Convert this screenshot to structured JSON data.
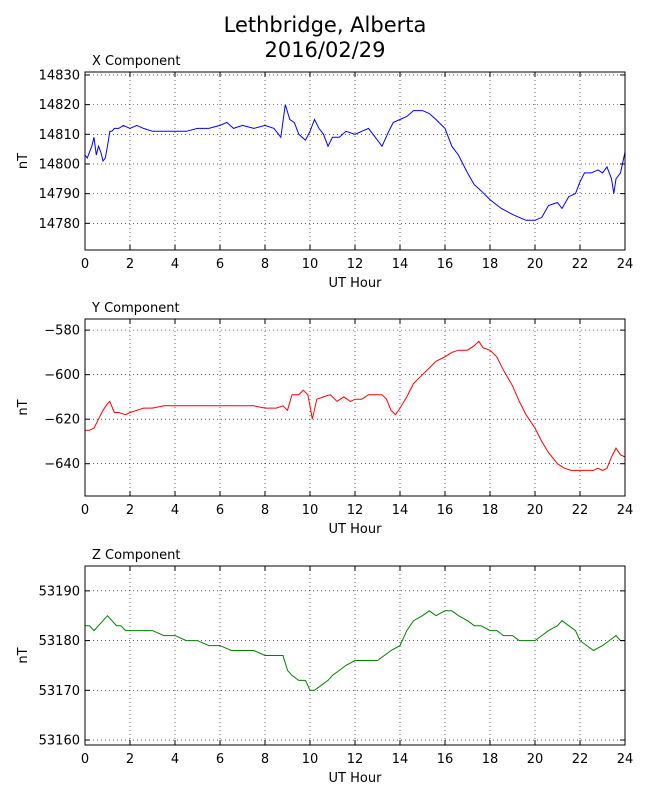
{
  "figure": {
    "title_line1": "Lethbridge, Alberta",
    "title_line2": "2016/02/29"
  },
  "chart_data": [
    {
      "type": "line",
      "title": "X Component",
      "xlabel": "UT Hour",
      "ylabel": "nT",
      "xlim": [
        0,
        24
      ],
      "ylim": [
        14771,
        14831
      ],
      "xticks": [
        0,
        2,
        4,
        6,
        8,
        10,
        12,
        14,
        16,
        18,
        20,
        22,
        24
      ],
      "yticks": [
        14780,
        14790,
        14800,
        14810,
        14820,
        14830
      ],
      "grid": true,
      "color": "#0000ff",
      "series": [
        {
          "x": [
            0,
            0.1,
            0.2,
            0.3,
            0.4,
            0.5,
            0.6,
            0.7,
            0.8,
            0.9,
            1.0,
            1.1,
            1.2,
            1.3,
            1.5,
            1.7,
            2.0,
            2.3,
            2.6,
            3.0,
            3.5,
            4.0,
            4.5,
            5.0,
            5.5,
            6.0,
            6.3,
            6.6,
            7.0,
            7.5,
            8.0,
            8.4,
            8.7,
            8.9,
            9.1,
            9.3,
            9.5,
            9.8,
            10.0,
            10.2,
            10.4,
            10.6,
            10.8,
            11.0,
            11.3,
            11.6,
            12.0,
            12.3,
            12.6,
            12.9,
            13.2,
            13.5,
            13.7,
            14.0,
            14.3,
            14.6,
            15.0,
            15.3,
            15.6,
            16.0,
            16.3,
            16.6,
            17.0,
            17.3,
            17.6,
            18.0,
            18.5,
            19.0,
            19.3,
            19.6,
            20.0,
            20.3,
            20.6,
            21.0,
            21.2,
            21.5,
            21.8,
            22.0,
            22.2,
            22.5,
            22.8,
            23.0,
            23.2,
            23.4,
            23.5,
            23.6,
            23.8,
            24.0
          ],
          "y": [
            14803,
            14802,
            14804,
            14806,
            14809,
            14803,
            14806,
            14804,
            14801,
            14802,
            14806,
            14811,
            14811,
            14812,
            14812,
            14813,
            14812,
            14813,
            14812,
            14811,
            14811,
            14811,
            14811,
            14812,
            14812,
            14813,
            14814,
            14812,
            14813,
            14812,
            14813,
            14812,
            14809,
            14820,
            14815,
            14814,
            14810,
            14808,
            14811,
            14815,
            14812,
            14810,
            14806,
            14809,
            14809,
            14811,
            14810,
            14811,
            14812,
            14809,
            14806,
            14811,
            14814,
            14815,
            14816,
            14818,
            14818,
            14817,
            14815,
            14812,
            14806,
            14803,
            14797,
            14793,
            14791,
            14788,
            14785,
            14783,
            14782,
            14781,
            14781,
            14782,
            14786,
            14787,
            14785,
            14789,
            14790,
            14794,
            14797,
            14797,
            14798,
            14797,
            14799,
            14795,
            14790,
            14795,
            14797,
            14804
          ]
        }
      ]
    },
    {
      "type": "line",
      "title": "Y Component",
      "xlabel": "UT Hour",
      "ylabel": "nT",
      "xlim": [
        0,
        24
      ],
      "ylim": [
        -654.5,
        -575
      ],
      "xticks": [
        0,
        2,
        4,
        6,
        8,
        10,
        12,
        14,
        16,
        18,
        20,
        22,
        24
      ],
      "yticks": [
        -580,
        -600,
        -620,
        -640
      ],
      "grid": true,
      "color": "#ff0000",
      "series": [
        {
          "x": [
            0,
            0.2,
            0.4,
            0.6,
            0.8,
            1.0,
            1.1,
            1.3,
            1.5,
            1.8,
            2.0,
            2.3,
            2.6,
            3.0,
            3.5,
            4.0,
            4.5,
            5.0,
            5.5,
            6.0,
            6.5,
            7.0,
            7.5,
            8.0,
            8.5,
            8.8,
            9.0,
            9.2,
            9.5,
            9.7,
            9.9,
            10.0,
            10.1,
            10.3,
            10.6,
            10.9,
            11.2,
            11.5,
            11.8,
            12.0,
            12.3,
            12.6,
            12.9,
            13.2,
            13.4,
            13.6,
            13.8,
            14.0,
            14.3,
            14.6,
            15.0,
            15.3,
            15.6,
            16.0,
            16.3,
            16.6,
            17.0,
            17.3,
            17.5,
            17.7,
            18.0,
            18.3,
            18.6,
            19.0,
            19.3,
            19.6,
            20.0,
            20.3,
            20.6,
            21.0,
            21.3,
            21.6,
            22.0,
            22.3,
            22.6,
            22.8,
            23.0,
            23.2,
            23.4,
            23.6,
            23.8,
            24.0
          ],
          "y": [
            -625,
            -625,
            -624,
            -620,
            -616,
            -613,
            -612,
            -617,
            -617,
            -618,
            -617,
            -616,
            -615,
            -615,
            -614,
            -614,
            -614,
            -614,
            -614,
            -614,
            -614,
            -614,
            -614,
            -615,
            -615,
            -614,
            -616,
            -609,
            -609,
            -607,
            -609,
            -614,
            -620,
            -611,
            -610,
            -609,
            -612,
            -610,
            -612,
            -611,
            -611,
            -609,
            -609,
            -609,
            -611,
            -616,
            -618,
            -615,
            -610,
            -604,
            -600,
            -597,
            -594,
            -592,
            -590,
            -589,
            -589,
            -587,
            -585,
            -588,
            -589,
            -592,
            -598,
            -605,
            -612,
            -618,
            -624,
            -630,
            -635,
            -640,
            -642,
            -643,
            -643,
            -643,
            -643,
            -642,
            -643,
            -642,
            -637,
            -633,
            -636,
            -637
          ]
        }
      ]
    },
    {
      "type": "line",
      "title": "Z Component",
      "xlabel": "UT Hour",
      "ylabel": "nT",
      "xlim": [
        0,
        24
      ],
      "ylim": [
        53159,
        53195
      ],
      "xticks": [
        0,
        2,
        4,
        6,
        8,
        10,
        12,
        14,
        16,
        18,
        20,
        22,
        24
      ],
      "yticks": [
        53160,
        53170,
        53180,
        53190
      ],
      "grid": true,
      "color": "#008000",
      "series": [
        {
          "x": [
            0,
            0.2,
            0.4,
            0.6,
            0.8,
            1.0,
            1.2,
            1.4,
            1.6,
            1.8,
            2.0,
            2.5,
            3.0,
            3.5,
            4.0,
            4.5,
            5.0,
            5.5,
            6.0,
            6.5,
            7.0,
            7.5,
            8.0,
            8.5,
            8.8,
            9.0,
            9.2,
            9.5,
            9.8,
            10.0,
            10.2,
            10.5,
            10.8,
            11.0,
            11.3,
            11.6,
            12.0,
            12.3,
            12.6,
            13.0,
            13.3,
            13.6,
            14.0,
            14.3,
            14.6,
            15.0,
            15.3,
            15.6,
            16.0,
            16.3,
            16.6,
            17.0,
            17.3,
            17.6,
            18.0,
            18.3,
            18.6,
            19.0,
            19.3,
            19.6,
            20.0,
            20.3,
            20.6,
            21.0,
            21.2,
            21.5,
            21.8,
            22.0,
            22.3,
            22.6,
            23.0,
            23.3,
            23.6,
            23.8,
            24.0
          ],
          "y": [
            53183,
            53183,
            53182,
            53183,
            53184,
            53185,
            53184,
            53183,
            53183,
            53182,
            53182,
            53182,
            53182,
            53181,
            53181,
            53180,
            53180,
            53179,
            53179,
            53178,
            53178,
            53178,
            53177,
            53177,
            53177,
            53174,
            53173,
            53172,
            53172,
            53170,
            53170,
            53171,
            53172,
            53173,
            53174,
            53175,
            53176,
            53176,
            53176,
            53176,
            53177,
            53178,
            53179,
            53182,
            53184,
            53185,
            53186,
            53185,
            53186,
            53186,
            53185,
            53184,
            53183,
            53183,
            53182,
            53182,
            53181,
            53181,
            53180,
            53180,
            53180,
            53181,
            53182,
            53183,
            53184,
            53183,
            53182,
            53180,
            53179,
            53178,
            53179,
            53180,
            53181,
            53180,
            53180
          ]
        }
      ]
    }
  ]
}
